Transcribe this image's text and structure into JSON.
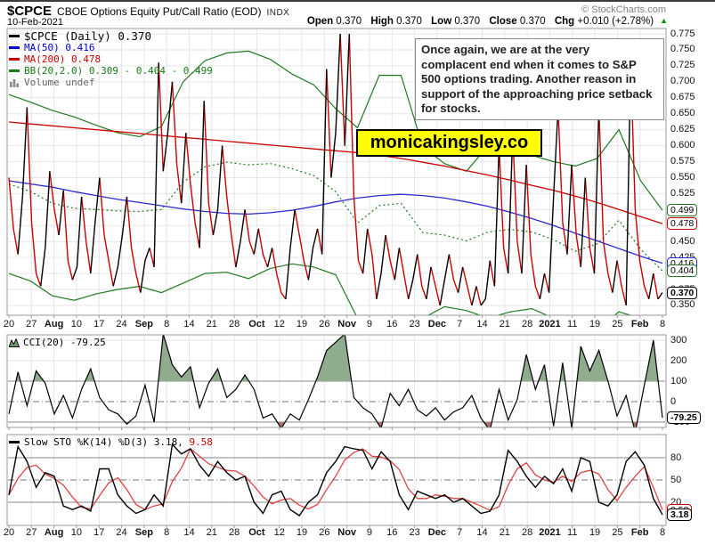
{
  "header": {
    "symbol": "$CPCE",
    "title": "CBOE Options Equity Put/Call Ratio (EOD)",
    "exchange": "INDX",
    "date": "10-Feb-2021",
    "source": "© StockCharts.com",
    "ohlc": [
      {
        "label": "Open",
        "value": "0.370"
      },
      {
        "label": "High",
        "value": "0.370"
      },
      {
        "label": "Low",
        "value": "0.370"
      },
      {
        "label": "Close",
        "value": "0.370"
      },
      {
        "label": "Chg",
        "value": "+0.010 (+2.78%)"
      }
    ],
    "change_direction": "up"
  },
  "annotation": "Once again, we are at the very complacent end when it comes to S&P 500 options trading. Another reason in support of the approaching price setback for stocks.",
  "watermark": "monicakingsley.co",
  "colors": {
    "price_up": "#000000",
    "price_down": "#cc0000",
    "ma50": "#2b2bd0",
    "ma200": "#cc0000",
    "bb": "#217a21",
    "grid": "#e6e6e6",
    "panel_border": "#999999",
    "ref_line": "#888888",
    "dashdot": "#777777",
    "cci_fill_high": "#8fac8f",
    "cci_fill_low": "#b37070",
    "sto_d": "#e04444",
    "accent_up": "#009900",
    "watermark_bg": "#ffff00"
  },
  "main_panel": {
    "legend": [
      {
        "label": "$CPCE (Daily) 0.370",
        "color": "#000000"
      },
      {
        "label": "MA(50) 0.416",
        "color": "#0000cc"
      },
      {
        "label": "MA(200) 0.478",
        "color": "#cc0000"
      },
      {
        "label": "BB(20,2.0) 0.309 - 0.404 - 0.499",
        "color": "#1a7a1a"
      },
      {
        "label": "Volume undef",
        "color": "#666666"
      }
    ],
    "y_ticks": [
      "0.775",
      "0.750",
      "0.725",
      "0.700",
      "0.675",
      "0.650",
      "0.625",
      "0.600",
      "0.575",
      "0.550",
      "0.525",
      "0.450",
      "0.425",
      "0.375",
      "0.350"
    ],
    "badges": [
      {
        "text": "0.499",
        "v": 0.499,
        "border": "#217a21",
        "bold": false
      },
      {
        "text": "0.478",
        "v": 0.478,
        "border": "#cc0000",
        "bold": false
      },
      {
        "text": "0.416",
        "v": 0.416,
        "border": "#2b2bd0",
        "bold": false
      },
      {
        "text": "0.404",
        "v": 0.404,
        "border": "#217a21",
        "bold": false
      },
      {
        "text": "0.370",
        "v": 0.37,
        "border": "#000000",
        "bold": true
      }
    ]
  },
  "cci_panel": {
    "legend": "CCI(20) -79.25",
    "y_ticks": [
      300,
      200,
      100,
      0,
      -100
    ],
    "badge": {
      "text": "-79.25",
      "v": -79.25,
      "border": "#000000",
      "bold": true
    }
  },
  "sto_panel": {
    "legend_main": "Slow STO %K(14) %D(3) 3.18, ",
    "legend_d": "9.58",
    "y_ticks": [
      80,
      50,
      20
    ],
    "badges": [
      {
        "text": "9.58",
        "v": 9.58,
        "border": "#cc0000",
        "bold": false
      },
      {
        "text": "3.18",
        "v": 3.18,
        "border": "#000000",
        "bold": true
      }
    ]
  },
  "x_axis": {
    "labels": [
      "20",
      "27",
      "Aug",
      "10",
      "17",
      "24",
      "Sep",
      "8",
      "14",
      "21",
      "28",
      "Oct",
      "12",
      "19",
      "26",
      "Nov",
      "9",
      "16",
      "23",
      "Dec",
      "7",
      "14",
      "21",
      "28",
      "2021",
      "11",
      "19",
      "25",
      "Feb",
      "8"
    ],
    "bold": [
      "Aug",
      "Sep",
      "Oct",
      "Nov",
      "Dec",
      "2021",
      "Feb"
    ]
  },
  "chart_data": [
    {
      "type": "line",
      "panel": "price",
      "title": "$CPCE CBOE Options Equity Put/Call Ratio (EOD) Daily",
      "date_range": "Jul-20-2020 to Feb-10-2021",
      "ylim": [
        0.335,
        0.783
      ],
      "y_tick_min": 0.35,
      "y_tick_max": 0.775,
      "y_tick_step": 0.025,
      "grid": true,
      "last_values": {
        "price": 0.37,
        "ma50": 0.416,
        "ma200": 0.478,
        "bb_lower": 0.309,
        "bb_mid": 0.404,
        "bb_upper": 0.499
      },
      "series": [
        {
          "name": "$CPCE (Daily)",
          "style": "two-color-updown",
          "values": [
            0.55,
            0.47,
            0.43,
            0.52,
            0.66,
            0.48,
            0.4,
            0.38,
            0.44,
            0.56,
            0.5,
            0.46,
            0.53,
            0.42,
            0.39,
            0.41,
            0.52,
            0.45,
            0.4,
            0.48,
            0.55,
            0.46,
            0.42,
            0.38,
            0.41,
            0.46,
            0.52,
            0.44,
            0.4,
            0.37,
            0.42,
            0.44,
            0.41,
            0.73,
            0.56,
            0.62,
            0.7,
            0.57,
            0.51,
            0.62,
            0.54,
            0.48,
            0.44,
            0.67,
            0.51,
            0.46,
            0.5,
            0.6,
            0.52,
            0.46,
            0.41,
            0.45,
            0.5,
            0.45,
            0.43,
            0.47,
            0.43,
            0.41,
            0.44,
            0.4,
            0.37,
            0.36,
            0.44,
            0.5,
            0.46,
            0.42,
            0.39,
            0.44,
            0.47,
            0.43,
            0.72,
            0.55,
            0.62,
            0.775,
            0.6,
            0.775,
            0.52,
            0.42,
            0.4,
            0.47,
            0.43,
            0.36,
            0.4,
            0.46,
            0.42,
            0.39,
            0.44,
            0.4,
            0.36,
            0.39,
            0.43,
            0.38,
            0.36,
            0.41,
            0.38,
            0.35,
            0.39,
            0.43,
            0.39,
            0.37,
            0.41,
            0.38,
            0.35,
            0.38,
            0.35,
            0.36,
            0.42,
            0.38,
            0.6,
            0.44,
            0.4,
            0.62,
            0.45,
            0.4,
            0.57,
            0.43,
            0.38,
            0.36,
            0.4,
            0.37,
            0.52,
            0.66,
            0.48,
            0.43,
            0.57,
            0.46,
            0.41,
            0.55,
            0.44,
            0.4,
            0.66,
            0.45,
            0.4,
            0.37,
            0.42,
            0.38,
            0.35,
            0.73,
            0.5,
            0.42,
            0.38,
            0.36,
            0.4,
            0.36,
            0.37
          ]
        },
        {
          "name": "MA(50)",
          "style": "line",
          "values": [
            0.545,
            0.54,
            0.535,
            0.528,
            0.522,
            0.516,
            0.511,
            0.506,
            0.501,
            0.497,
            0.494,
            0.493,
            0.495,
            0.499,
            0.505,
            0.512,
            0.518,
            0.522,
            0.524,
            0.522,
            0.518,
            0.512,
            0.505,
            0.496,
            0.486,
            0.475,
            0.463,
            0.451,
            0.439,
            0.427,
            0.416
          ]
        },
        {
          "name": "MA(200)",
          "style": "line",
          "values": [
            0.637,
            0.634,
            0.631,
            0.628,
            0.625,
            0.622,
            0.619,
            0.616,
            0.613,
            0.61,
            0.607,
            0.604,
            0.601,
            0.598,
            0.595,
            0.592,
            0.589,
            0.585,
            0.58,
            0.574,
            0.568,
            0.561,
            0.554,
            0.546,
            0.538,
            0.53,
            0.521,
            0.511,
            0.5,
            0.489,
            0.478
          ]
        },
        {
          "name": "BB(20,2.0) upper",
          "style": "line",
          "values": [
            0.68,
            0.668,
            0.655,
            0.645,
            0.632,
            0.62,
            0.614,
            0.63,
            0.7,
            0.733,
            0.745,
            0.748,
            0.735,
            0.712,
            0.695,
            0.658,
            0.628,
            0.71,
            0.71,
            0.598,
            0.572,
            0.56,
            0.6,
            0.598,
            0.585,
            0.575,
            0.568,
            0.58,
            0.625,
            0.545,
            0.499
          ]
        },
        {
          "name": "BB(20,2.0) middle",
          "style": "dotted",
          "values": [
            0.54,
            0.528,
            0.51,
            0.502,
            0.5,
            0.498,
            0.497,
            0.5,
            0.543,
            0.567,
            0.574,
            0.57,
            0.572,
            0.564,
            0.553,
            0.528,
            0.479,
            0.506,
            0.51,
            0.464,
            0.46,
            0.451,
            0.465,
            0.469,
            0.465,
            0.453,
            0.435,
            0.446,
            0.483,
            0.438,
            0.404
          ]
        },
        {
          "name": "BB(20,2.0) lower",
          "style": "line",
          "values": [
            0.4,
            0.388,
            0.365,
            0.358,
            0.368,
            0.375,
            0.38,
            0.37,
            0.385,
            0.4,
            0.402,
            0.392,
            0.408,
            0.415,
            0.41,
            0.398,
            0.33,
            0.302,
            0.31,
            0.33,
            0.348,
            0.342,
            0.33,
            0.34,
            0.345,
            0.33,
            0.302,
            0.312,
            0.34,
            0.33,
            0.309
          ]
        }
      ]
    },
    {
      "type": "line",
      "panel": "cci",
      "title": "CCI(20)",
      "ylim": [
        -125,
        330
      ],
      "ref_solid": [
        100,
        -100
      ],
      "ref_dashdot": [
        0
      ],
      "light_grid": [
        300,
        200
      ],
      "fill_above": 100,
      "fill_below": -100,
      "last": -79.25,
      "values": [
        -60,
        145,
        -20,
        150,
        90,
        -60,
        30,
        -80,
        60,
        160,
        20,
        -40,
        -60,
        -110,
        -70,
        80,
        -100,
        330,
        180,
        120,
        170,
        -30,
        90,
        160,
        20,
        60,
        130,
        60,
        -80,
        -60,
        -130,
        -60,
        -90,
        10,
        120,
        250,
        290,
        330,
        20,
        -30,
        -60,
        -130,
        40,
        -20,
        60,
        -40,
        -70,
        -30,
        -90,
        -50,
        -30,
        30,
        -80,
        -140,
        60,
        -90,
        10,
        230,
        60,
        180,
        -120,
        190,
        -130,
        270,
        150,
        250,
        100,
        -70,
        30,
        -150,
        80,
        300,
        -79.25
      ]
    },
    {
      "type": "line",
      "panel": "sto",
      "title": "Slow STO %K(14) %D(3)",
      "ylim": [
        -12,
        113
      ],
      "ref_solid": [
        80,
        20
      ],
      "ref_dashdot": [
        50
      ],
      "series": [
        {
          "name": "%K(14)",
          "last": 3.18,
          "values": [
            30,
            95,
            75,
            40,
            60,
            55,
            15,
            10,
            15,
            8,
            65,
            65,
            30,
            15,
            5,
            10,
            30,
            15,
            98,
            85,
            92,
            70,
            55,
            75,
            60,
            50,
            55,
            20,
            5,
            30,
            35,
            10,
            2,
            20,
            30,
            60,
            75,
            95,
            92,
            90,
            65,
            88,
            75,
            30,
            10,
            35,
            30,
            25,
            30,
            20,
            25,
            15,
            5,
            8,
            30,
            90,
            75,
            55,
            40,
            55,
            45,
            65,
            35,
            80,
            75,
            20,
            15,
            30,
            75,
            88,
            70,
            25,
            3.18
          ]
        },
        {
          "name": "%D(3)",
          "last": 9.58,
          "values": [
            30,
            52,
            67,
            70,
            58,
            52,
            43,
            27,
            13,
            11,
            29,
            46,
            53,
            37,
            17,
            10,
            15,
            18,
            48,
            66,
            92,
            82,
            72,
            67,
            63,
            62,
            55,
            42,
            27,
            18,
            23,
            25,
            16,
            11,
            17,
            37,
            55,
            77,
            87,
            92,
            82,
            81,
            76,
            64,
            38,
            25,
            25,
            30,
            28,
            25,
            25,
            20,
            15,
            9,
            14,
            43,
            65,
            73,
            57,
            50,
            47,
            55,
            48,
            60,
            63,
            58,
            37,
            22,
            40,
            55,
            68,
            40,
            9.58
          ]
        }
      ]
    }
  ]
}
